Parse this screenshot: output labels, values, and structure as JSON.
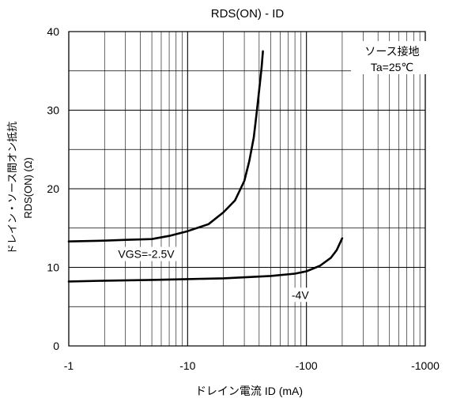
{
  "chart_data": {
    "type": "line",
    "title": "RDS(ON) - ID",
    "xlabel": "ドレイン電流 ID (mA)",
    "ylabel_line1": "ドレイン・ソース間オン抵抗",
    "ylabel_line2": "RDS(ON) (Ω)",
    "xscale": "log",
    "xlim": [
      -1,
      -1000
    ],
    "ylim": [
      0,
      40
    ],
    "x_ticks": [
      {
        "value": -1,
        "label": "-1"
      },
      {
        "value": -10,
        "label": "-10"
      },
      {
        "value": -100,
        "label": "-100"
      },
      {
        "value": -1000,
        "label": "-1000"
      }
    ],
    "y_ticks": [
      {
        "value": 0,
        "label": "0"
      },
      {
        "value": 10,
        "label": "10"
      },
      {
        "value": 20,
        "label": "20"
      },
      {
        "value": 30,
        "label": "30"
      },
      {
        "value": 40,
        "label": "40"
      }
    ],
    "grid": true,
    "annotation": {
      "line1": "ソース接地",
      "line2": "Ta=25℃"
    },
    "series": [
      {
        "name": "VGS=-2.5V",
        "x": [
          -1,
          -2,
          -3,
          -5,
          -7,
          -10,
          -15,
          -20,
          -25,
          -30,
          -33,
          -36,
          -38,
          -40,
          -42,
          -43
        ],
        "y": [
          13.3,
          13.4,
          13.5,
          13.6,
          14.0,
          14.6,
          15.5,
          17.0,
          18.5,
          21.0,
          23.5,
          26.5,
          29.5,
          32.5,
          35.5,
          37.5
        ]
      },
      {
        "name": "-4V",
        "x": [
          -1,
          -2,
          -5,
          -10,
          -20,
          -50,
          -80,
          -100,
          -130,
          -160,
          -180,
          -200
        ],
        "y": [
          8.2,
          8.3,
          8.4,
          8.5,
          8.6,
          8.9,
          9.2,
          9.5,
          10.2,
          11.2,
          12.2,
          13.7
        ]
      }
    ],
    "series_labels": [
      {
        "series": 0,
        "text": "VGS=-2.5V",
        "x": -2.6,
        "y": 11.2
      },
      {
        "series": 1,
        "text": "-4V",
        "x": -75,
        "y": 6.0
      }
    ]
  }
}
